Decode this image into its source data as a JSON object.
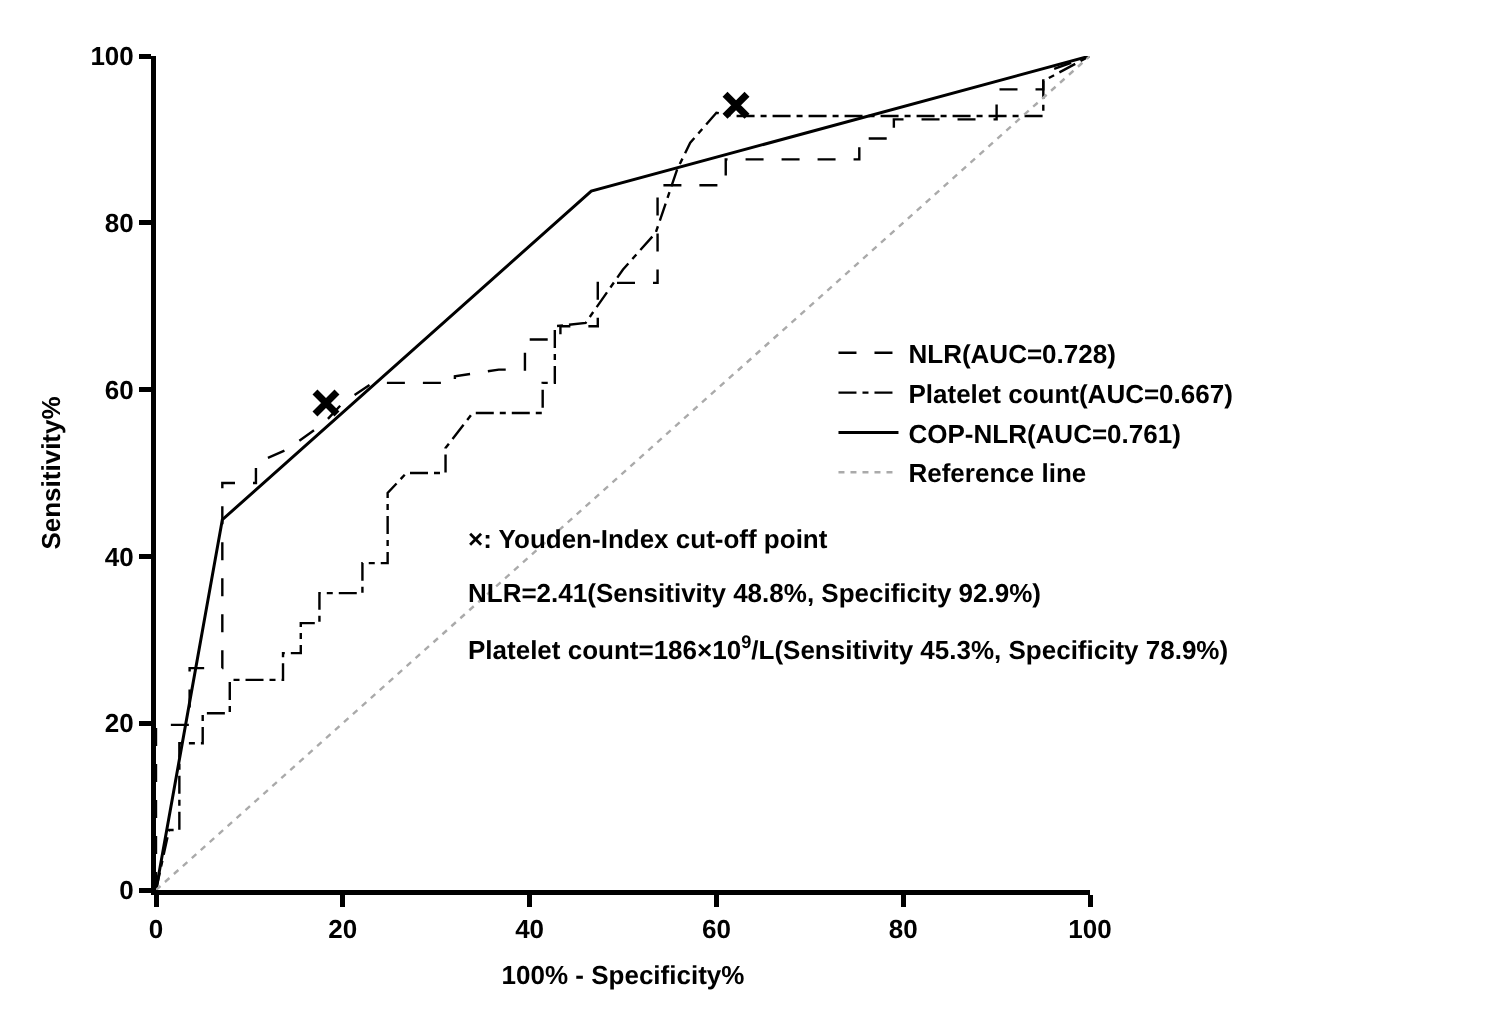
{
  "chart_data": {
    "type": "line",
    "xlabel": "100% - Specificity%",
    "ylabel": "Sensitivity%",
    "xlim": [
      0,
      100
    ],
    "ylim": [
      0,
      100
    ],
    "xticks": [
      0,
      20,
      40,
      60,
      80,
      100
    ],
    "yticks": [
      0,
      20,
      40,
      60,
      80,
      100
    ],
    "grid": false,
    "legend": "right",
    "marker": "none",
    "series": [
      {
        "name": "NLR(AUC=0.728)",
        "color": "#000000",
        "line_style": "dashed",
        "x": [
          0,
          0,
          3.6,
          3.6,
          7.1,
          7.1,
          10.7,
          10.7,
          14,
          18,
          20,
          23.2,
          32,
          32,
          36.7,
          39.5,
          39.5,
          43.3,
          43.3,
          47.3,
          47.3,
          53.7,
          53.7,
          61,
          61,
          75.3,
          75.3,
          79,
          79,
          90,
          90,
          95,
          95,
          100
        ],
        "values": [
          0,
          19.8,
          19.8,
          26.6,
          26.6,
          48.8,
          48.8,
          51.2,
          52.8,
          56,
          58.4,
          60.8,
          60.8,
          61.6,
          62.4,
          62.4,
          66,
          66,
          67.6,
          67.6,
          72.8,
          72.8,
          84.5,
          84.5,
          87.6,
          87.6,
          90.1,
          90.1,
          92.4,
          92.4,
          96,
          96,
          98,
          100
        ]
      },
      {
        "name": "Platelet count(AUC=0.667)",
        "color": "#000000",
        "line_style": "dashdot",
        "x": [
          0,
          1.4,
          2.5,
          2.5,
          5,
          5,
          7.9,
          7.9,
          13.6,
          13.6,
          15.5,
          15.5,
          17.5,
          17.5,
          22.1,
          22.1,
          24.8,
          24.8,
          26.8,
          31,
          31,
          33.9,
          41.4,
          41.4,
          42.7,
          42.7,
          46,
          50,
          53.5,
          55.8,
          57.2,
          60,
          62,
          95,
          95,
          100
        ],
        "values": [
          0,
          7.2,
          7.2,
          17.6,
          17.6,
          21.2,
          21.2,
          25.2,
          25.2,
          28.4,
          28.4,
          32,
          32,
          35.6,
          35.6,
          39.2,
          39.2,
          47.6,
          50,
          50,
          53,
          57.2,
          57.2,
          60.8,
          60.8,
          67.6,
          68,
          74.4,
          78.8,
          86.4,
          89.6,
          93.2,
          92.8,
          92.8,
          97,
          100
        ]
      },
      {
        "name": "COP-NLR(AUC=0.761)",
        "color": "#000000",
        "line_style": "solid",
        "x": [
          0,
          7.1,
          46.6,
          100
        ],
        "values": [
          0,
          44.4,
          83.8,
          100
        ]
      },
      {
        "name": "Reference line",
        "color": "#aaaaaa",
        "line_style": "dotted",
        "x": [
          0,
          100
        ],
        "values": [
          0,
          100
        ]
      },
      {
        "type": "scatter",
        "color": "#000000",
        "marker": "cross",
        "x": [
          18.2,
          62.1
        ],
        "values": [
          58.4,
          94.1
        ]
      }
    ],
    "annotations": [
      "×: Youden-Index cut-off point",
      "NLR=2.41(Sensitivity 48.8%, Specificity 92.9%)",
      "Platelet count=186×10$^{9}$/L(Sensitivity 45.3%, Specificity 78.9%)"
    ]
  }
}
